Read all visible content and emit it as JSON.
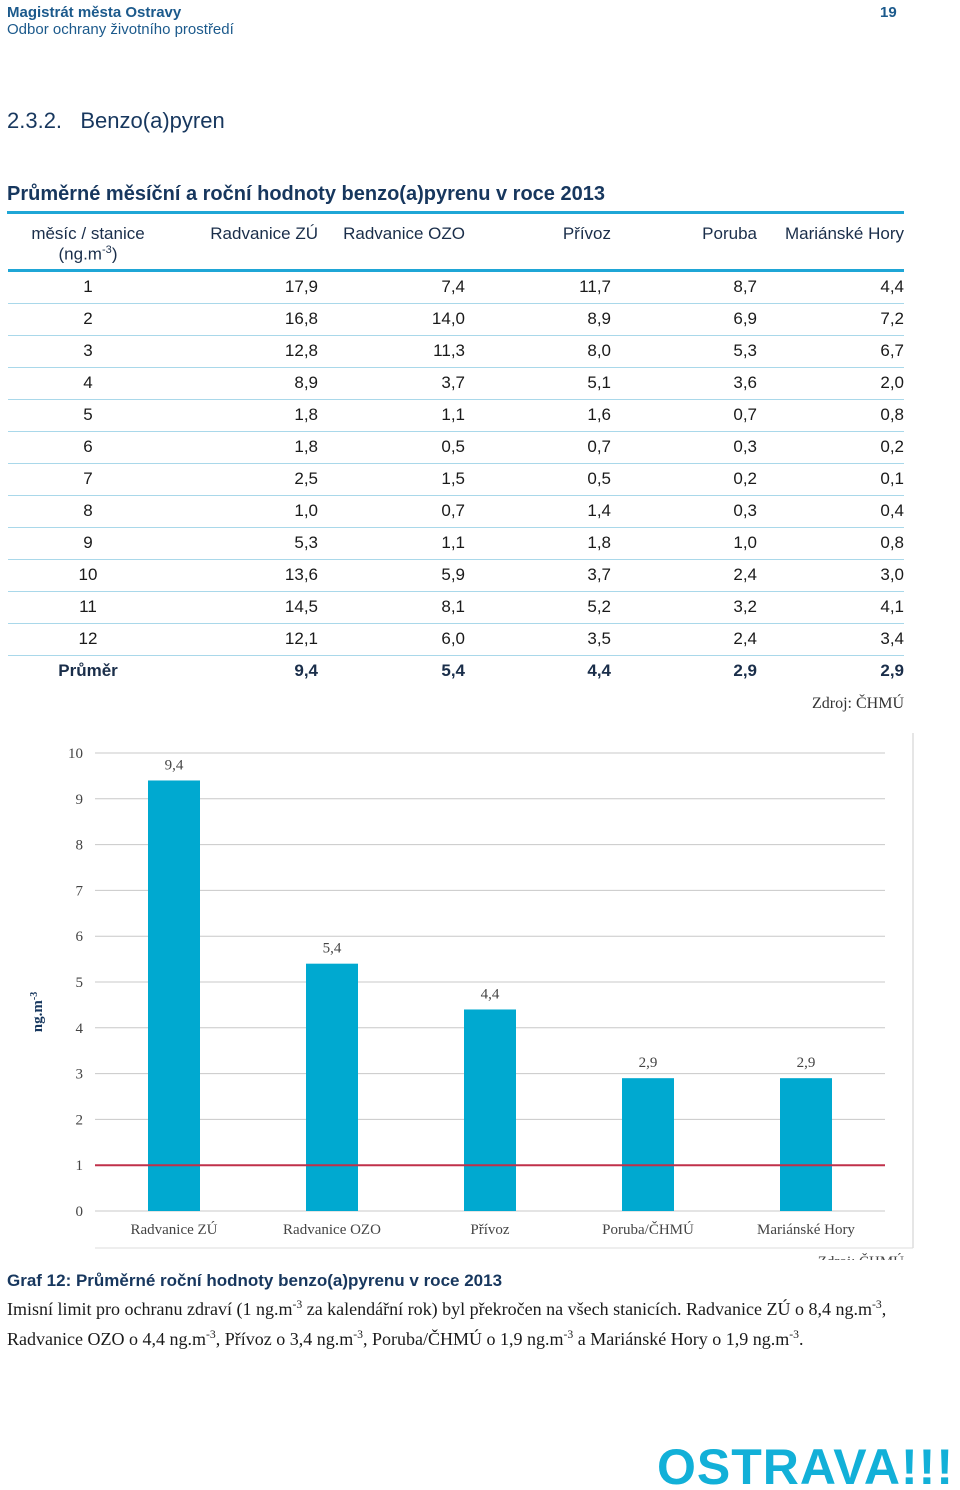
{
  "header": {
    "org": "Magistrát města Ostravy",
    "dept": "Odbor ochrany životního prostředí",
    "page": "19"
  },
  "section": "2.3.2.   Benzo(a)pyren",
  "table": {
    "title": "Průměrné měsíční a roční hodnoty benzo(a)pyrenu v roce 2013",
    "header": [
      "měsíc / stanice",
      "Radvanice ZÚ",
      "Radvanice OZO",
      "Přívoz",
      "Poruba",
      "Mariánské Hory"
    ],
    "header_unit": [
      "(ng.m",
      "-3",
      ")"
    ],
    "rows": [
      [
        "1",
        "17,9",
        "7,4",
        "11,7",
        "8,7",
        "4,4"
      ],
      [
        "2",
        "16,8",
        "14,0",
        "8,9",
        "6,9",
        "7,2"
      ],
      [
        "3",
        "12,8",
        "11,3",
        "8,0",
        "5,3",
        "6,7"
      ],
      [
        "4",
        "8,9",
        "3,7",
        "5,1",
        "3,6",
        "2,0"
      ],
      [
        "5",
        "1,8",
        "1,1",
        "1,6",
        "0,7",
        "0,8"
      ],
      [
        "6",
        "1,8",
        "0,5",
        "0,7",
        "0,3",
        "0,2"
      ],
      [
        "7",
        "2,5",
        "1,5",
        "0,5",
        "0,2",
        "0,1"
      ],
      [
        "8",
        "1,0",
        "0,7",
        "1,4",
        "0,3",
        "0,4"
      ],
      [
        "9",
        "5,3",
        "1,1",
        "1,8",
        "1,0",
        "0,8"
      ],
      [
        "10",
        "13,6",
        "5,9",
        "3,7",
        "2,4",
        "3,0"
      ],
      [
        "11",
        "14,5",
        "8,1",
        "5,2",
        "3,2",
        "4,1"
      ],
      [
        "12",
        "12,1",
        "6,0",
        "3,5",
        "2,4",
        "3,4"
      ]
    ],
    "average": [
      "Průměr",
      "9,4",
      "5,4",
      "4,4",
      "2,9",
      "2,9"
    ],
    "source": "Zdroj: ČHMÚ"
  },
  "chart_data": {
    "type": "bar",
    "categories": [
      "Radvanice ZÚ",
      "Radvanice OZO",
      "Přívoz",
      "Poruba/ČHMÚ",
      "Mariánské Hory"
    ],
    "values": [
      9.4,
      5.4,
      4.4,
      2.9,
      2.9
    ],
    "value_labels": [
      "9,4",
      "5,4",
      "4,4",
      "2,9",
      "2,9"
    ],
    "color": "#00a9d0",
    "ylim": [
      0,
      10
    ],
    "yticks": [
      0,
      1,
      2,
      3,
      4,
      5,
      6,
      7,
      8,
      9,
      10
    ],
    "grid": true,
    "y_label": [
      "ng.m",
      "-3"
    ],
    "limit_line": {
      "value": 1,
      "color": "#c0304a"
    },
    "source": "Zdroj: ČHMÚ"
  },
  "caption": "Graf 12: Průměrné roční hodnoty benzo(a)pyrenu v roce 2013",
  "paragraph": [
    "Imisní limit pro ochranu zdraví (1 ng.m",
    "-3",
    " za kalendářní rok) byl překročen na všech stanicích. Radvanice ZÚ o 8,4 ng.m",
    "-3",
    ", Radvanice OZO o 4,4 ng.m",
    "-3",
    ", Přívoz o 3,4 ng.m",
    "-3",
    ", Poruba/ČHMÚ o 1,9 ng.m",
    "-3",
    " a Mariánské Hory o 1,9 ng.m",
    "-3",
    "."
  ],
  "logo": "OSTRAVA!!!"
}
